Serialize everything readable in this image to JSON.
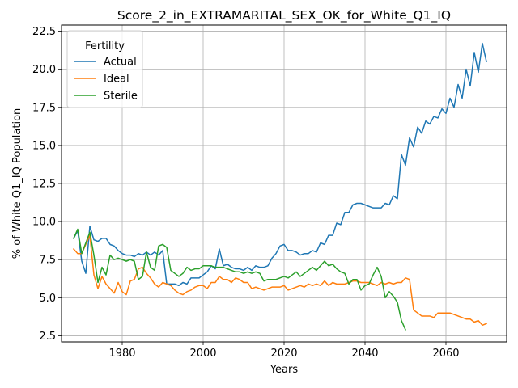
{
  "chart_data": {
    "type": "line",
    "title": "Score_2_in_EXTRAMARITAL_SEX_OK_for_White_Q1_IQ",
    "xlabel": "Years",
    "ylabel": "% of White Q1_IQ Population",
    "xlim": [
      1965,
      2075
    ],
    "ylim": [
      2.1,
      22.9
    ],
    "xticks": [
      1980,
      2000,
      2020,
      2040,
      2060
    ],
    "yticks": [
      2.5,
      5.0,
      7.5,
      10.0,
      12.5,
      15.0,
      17.5,
      20.0,
      22.5
    ],
    "xtick_labels": [
      "1980",
      "2000",
      "2020",
      "2040",
      "2060"
    ],
    "ytick_labels": [
      "2.5",
      "5.0",
      "7.5",
      "10.0",
      "12.5",
      "15.0",
      "17.5",
      "20.0",
      "22.5"
    ],
    "grid": true,
    "legend": {
      "title": "Fertility",
      "placement": "top-left"
    },
    "series": [
      {
        "name": "Actual",
        "color": "#1f77b4",
        "x": [
          1968,
          1969,
          1970,
          1971,
          1972,
          1973,
          1974,
          1975,
          1976,
          1977,
          1978,
          1979,
          1980,
          1981,
          1982,
          1983,
          1984,
          1985,
          1986,
          1987,
          1988,
          1989,
          1990,
          1991,
          1992,
          1993,
          1994,
          1995,
          1996,
          1997,
          1998,
          1999,
          2000,
          2001,
          2002,
          2003,
          2004,
          2005,
          2006,
          2007,
          2008,
          2009,
          2010,
          2011,
          2012,
          2013,
          2014,
          2015,
          2016,
          2017,
          2018,
          2019,
          2020,
          2021,
          2022,
          2023,
          2024,
          2025,
          2026,
          2027,
          2028,
          2029,
          2030,
          2031,
          2032,
          2033,
          2034,
          2035,
          2036,
          2037,
          2038,
          2039,
          2040,
          2041,
          2042,
          2043,
          2044,
          2045,
          2046,
          2047,
          2048,
          2049,
          2050,
          2051,
          2052,
          2053,
          2054,
          2055,
          2056,
          2057,
          2058,
          2059,
          2060,
          2061,
          2062,
          2063,
          2064,
          2065,
          2066,
          2067,
          2068,
          2069,
          2070
        ],
        "values": [
          8.9,
          9.4,
          7.4,
          6.6,
          9.7,
          8.8,
          8.7,
          8.9,
          8.9,
          8.5,
          8.4,
          8.1,
          7.9,
          7.8,
          7.8,
          7.7,
          7.9,
          7.8,
          8.0,
          7.8,
          8.0,
          7.8,
          8.1,
          5.9,
          5.9,
          5.9,
          5.8,
          6.0,
          5.9,
          6.3,
          6.3,
          6.3,
          6.5,
          6.7,
          7.1,
          6.9,
          8.2,
          7.1,
          7.2,
          7.0,
          6.9,
          6.9,
          6.8,
          7.0,
          6.8,
          7.1,
          7.0,
          7.0,
          7.1,
          7.6,
          7.9,
          8.4,
          8.5,
          8.1,
          8.1,
          8.0,
          7.8,
          7.9,
          7.9,
          8.1,
          8.0,
          8.6,
          8.5,
          9.1,
          9.1,
          9.9,
          9.8,
          10.6,
          10.6,
          11.1,
          11.2,
          11.2,
          11.1,
          11.0,
          10.9,
          10.9,
          10.9,
          11.2,
          11.1,
          11.7,
          11.5,
          14.4,
          13.7,
          15.5,
          14.9,
          16.2,
          15.8,
          16.6,
          16.4,
          16.9,
          16.8,
          17.4,
          17.1,
          18.1,
          17.5,
          19.0,
          18.1,
          20.0,
          18.9,
          21.1,
          19.8,
          21.7,
          20.5
        ]
      },
      {
        "name": "Ideal",
        "color": "#ff7f0e",
        "x": [
          1968,
          1969,
          1970,
          1971,
          1972,
          1973,
          1974,
          1975,
          1976,
          1977,
          1978,
          1979,
          1980,
          1981,
          1982,
          1983,
          1984,
          1985,
          1986,
          1987,
          1988,
          1989,
          1990,
          1991,
          1992,
          1993,
          1994,
          1995,
          1996,
          1997,
          1998,
          1999,
          2000,
          2001,
          2002,
          2003,
          2004,
          2005,
          2006,
          2007,
          2008,
          2009,
          2010,
          2011,
          2012,
          2013,
          2014,
          2015,
          2016,
          2017,
          2018,
          2019,
          2020,
          2021,
          2022,
          2023,
          2024,
          2025,
          2026,
          2027,
          2028,
          2029,
          2030,
          2031,
          2032,
          2033,
          2034,
          2035,
          2036,
          2037,
          2038,
          2039,
          2040,
          2041,
          2042,
          2043,
          2044,
          2045,
          2046,
          2047,
          2048,
          2049,
          2050,
          2051,
          2052,
          2053,
          2054,
          2055,
          2056,
          2057,
          2058,
          2059,
          2060,
          2061,
          2062,
          2063,
          2064,
          2065,
          2066,
          2067,
          2068,
          2069,
          2070
        ],
        "values": [
          8.2,
          7.9,
          7.9,
          8.5,
          9.1,
          6.5,
          5.6,
          6.4,
          5.9,
          5.6,
          5.3,
          6.0,
          5.4,
          5.2,
          6.1,
          6.2,
          6.9,
          7.0,
          6.6,
          6.3,
          5.9,
          5.7,
          6.0,
          5.9,
          5.8,
          5.5,
          5.3,
          5.2,
          5.4,
          5.5,
          5.7,
          5.8,
          5.8,
          5.6,
          6.0,
          6.0,
          6.4,
          6.2,
          6.2,
          6.0,
          6.3,
          6.2,
          6.0,
          6.0,
          5.6,
          5.7,
          5.6,
          5.5,
          5.6,
          5.7,
          5.7,
          5.7,
          5.8,
          5.5,
          5.6,
          5.7,
          5.8,
          5.7,
          5.9,
          5.8,
          5.9,
          5.8,
          6.1,
          5.8,
          6.0,
          5.9,
          5.9,
          5.9,
          6.0,
          6.1,
          6.1,
          6.0,
          6.0,
          6.0,
          5.9,
          5.8,
          6.0,
          5.9,
          6.0,
          5.9,
          6.0,
          6.0,
          6.3,
          6.2,
          4.2,
          4.0,
          3.8,
          3.8,
          3.8,
          3.7,
          4.0,
          4.0,
          4.0,
          4.0,
          3.9,
          3.8,
          3.7,
          3.6,
          3.6,
          3.4,
          3.5,
          3.2,
          3.3
        ]
      },
      {
        "name": "Sterile",
        "color": "#2ca02c",
        "x": [
          1968,
          1969,
          1970,
          1971,
          1972,
          1973,
          1974,
          1975,
          1976,
          1977,
          1978,
          1979,
          1980,
          1981,
          1982,
          1983,
          1984,
          1985,
          1986,
          1987,
          1988,
          1989,
          1990,
          1991,
          1992,
          1993,
          1994,
          1995,
          1996,
          1997,
          1998,
          1999,
          2000,
          2001,
          2002,
          2003,
          2004,
          2005,
          2006,
          2007,
          2008,
          2009,
          2010,
          2011,
          2012,
          2013,
          2014,
          2015,
          2016,
          2017,
          2018,
          2019,
          2020,
          2021,
          2022,
          2023,
          2024,
          2025,
          2026,
          2027,
          2028,
          2029,
          2030,
          2031,
          2032,
          2033,
          2034,
          2035,
          2036,
          2037,
          2038,
          2039,
          2040,
          2041,
          2042,
          2043,
          2044,
          2045,
          2046,
          2047,
          2048,
          2049,
          2050
        ],
        "values": [
          8.9,
          9.5,
          7.9,
          8.6,
          9.3,
          7.8,
          6.0,
          7.0,
          6.5,
          7.8,
          7.5,
          7.6,
          7.5,
          7.4,
          7.5,
          7.4,
          6.2,
          6.4,
          8.0,
          7.0,
          6.8,
          8.4,
          8.5,
          8.3,
          6.8,
          6.6,
          6.4,
          6.6,
          7.0,
          6.8,
          6.9,
          6.9,
          7.1,
          7.1,
          7.1,
          7.0,
          7.0,
          7.0,
          6.9,
          6.8,
          6.7,
          6.7,
          6.6,
          6.7,
          6.6,
          6.7,
          6.6,
          6.1,
          6.2,
          6.2,
          6.2,
          6.3,
          6.4,
          6.3,
          6.5,
          6.7,
          6.4,
          6.6,
          6.8,
          7.0,
          6.8,
          7.1,
          7.4,
          7.1,
          7.2,
          6.9,
          6.7,
          6.6,
          5.9,
          6.2,
          6.2,
          5.5,
          5.8,
          5.9,
          6.5,
          7.0,
          6.4,
          5.0,
          5.4,
          5.1,
          4.7,
          3.5,
          2.9
        ]
      }
    ]
  }
}
